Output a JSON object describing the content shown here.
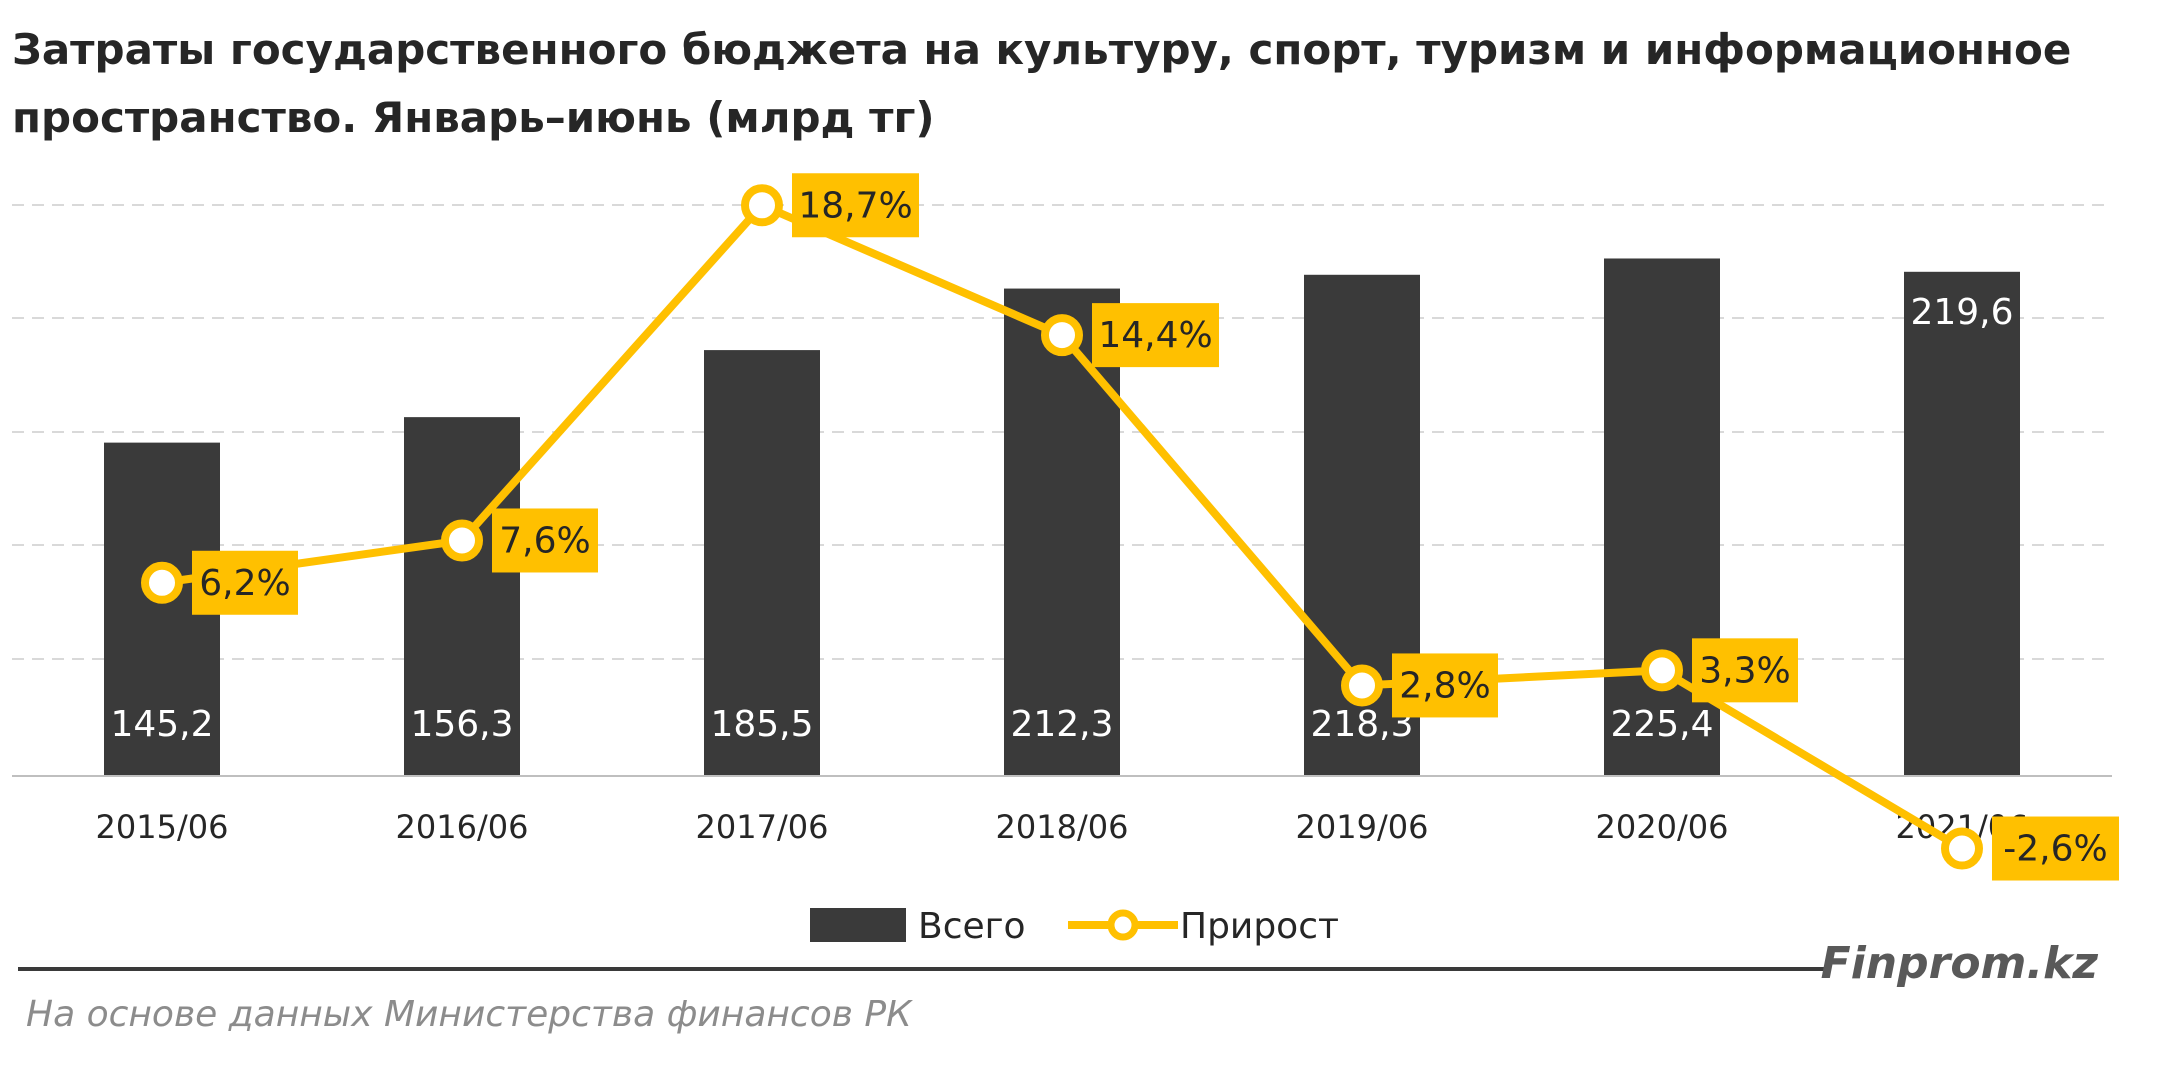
{
  "title_line1": "Затраты государственного бюджета на культуру, спорт, туризм и информационное",
  "title_line2": "пространство. Январь–июнь (млрд тг)",
  "brand": "Finprom.kz",
  "source": "На основе данных Министерства финансов РК",
  "colors": {
    "bar": "#3a3a3a",
    "line": "#ffc000",
    "label_bg": "#ffc000",
    "grid": "#d9d9d9"
  },
  "chart_data": {
    "type": "bar+line",
    "categories": [
      "2015/06",
      "2016/06",
      "2017/06",
      "2018/06",
      "2019/06",
      "2020/06",
      "2021/06"
    ],
    "series": [
      {
        "name": "Всего",
        "type": "bar",
        "values": [
          145.2,
          156.3,
          185.5,
          212.3,
          218.3,
          225.4,
          219.6
        ],
        "labels": [
          "145,2",
          "156,3",
          "185,5",
          "212,3",
          "218,3",
          "225,4",
          "219,6"
        ]
      },
      {
        "name": "Прирост",
        "type": "line",
        "values": [
          6.2,
          7.6,
          18.7,
          14.4,
          2.8,
          3.3,
          -2.6
        ],
        "labels": [
          "6,2%",
          "7,6%",
          "18,7%",
          "14,4%",
          "2,8%",
          "3,3%",
          "-2,6%"
        ]
      }
    ],
    "legend_position": "bottom",
    "grid": true
  }
}
